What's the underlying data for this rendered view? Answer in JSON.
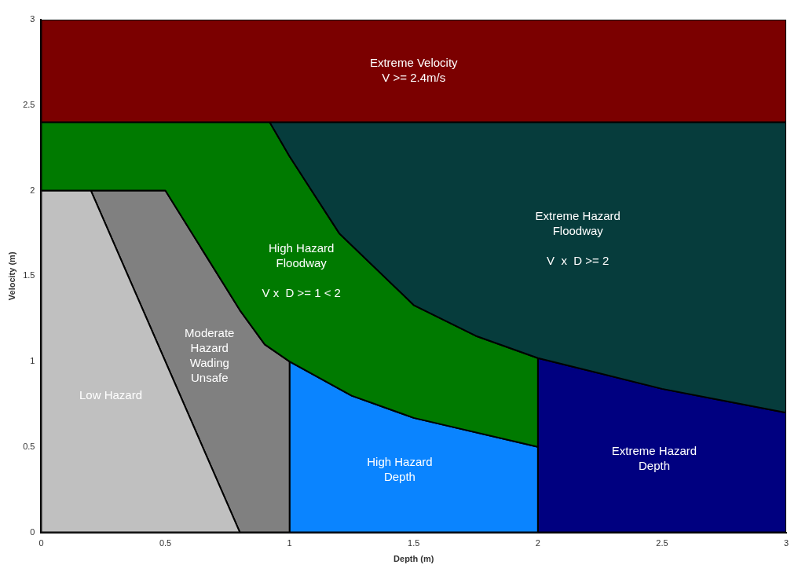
{
  "chart_data": {
    "type": "area",
    "xlabel": "Depth (m)",
    "ylabel": "Velocity (m)",
    "xlim": [
      0,
      3
    ],
    "ylim": [
      0,
      3
    ],
    "xticks": [
      0,
      0.5,
      1,
      1.5,
      2,
      2.5,
      3
    ],
    "yticks": [
      0,
      0.5,
      1,
      1.5,
      2,
      2.5,
      3
    ],
    "grid": false,
    "legend": false,
    "marker": "none",
    "line_style": "solid",
    "series": [
      {
        "name": "Extreme Velocity\nV >= 2.4m/s",
        "color": "#7b0000",
        "x": [
          0,
          3,
          3,
          0,
          0
        ],
        "values": [
          2.4,
          2.4,
          3,
          3,
          2.4
        ]
      },
      {
        "name": "Extreme Hazard\nFloodway\n\nV  x  D >= 2",
        "color": "#063c3c",
        "x": [
          0.92,
          1,
          1.2,
          1.5,
          1.75,
          2,
          2.5,
          3,
          3,
          0.92
        ],
        "values": [
          2.4,
          2.2,
          1.75,
          1.33,
          1.15,
          1.02,
          0.84,
          0.7,
          2.4,
          2.4
        ]
      },
      {
        "name": "High Hazard\nFloodway\n\nV x  D >= 1 < 2",
        "color": "#007a00",
        "x": [
          0,
          0.5,
          0.8,
          0.9,
          1,
          1.25,
          1.5,
          2,
          2,
          1.75,
          1.5,
          1.2,
          1,
          0.92,
          0,
          0
        ],
        "values": [
          2,
          2,
          1.3,
          1.1,
          1,
          0.8,
          0.67,
          0.5,
          1.02,
          1.15,
          1.33,
          1.75,
          2.2,
          2.4,
          2.4,
          2
        ]
      },
      {
        "name": "Low Hazard",
        "color": "#c0c0c0",
        "x": [
          0,
          0.8,
          0.2,
          0,
          0
        ],
        "values": [
          0,
          0,
          2,
          2,
          0
        ]
      },
      {
        "name": "Moderate\nHazard\nWading\nUnsafe",
        "color": "#808080",
        "x": [
          0.2,
          0.5,
          0.8,
          0.9,
          1,
          1,
          0.8,
          0.2
        ],
        "values": [
          2,
          2,
          1.3,
          1.1,
          1,
          0,
          0,
          2
        ]
      },
      {
        "name": "High Hazard\nDepth",
        "color": "#0a84ff",
        "x": [
          1,
          1,
          1.25,
          1.5,
          2,
          2,
          1
        ],
        "values": [
          0,
          1,
          0.8,
          0.67,
          0.5,
          0,
          0
        ]
      },
      {
        "name": "Extreme Hazard\nDepth",
        "color": "#000080",
        "x": [
          2,
          2,
          2.5,
          3,
          3,
          2
        ],
        "values": [
          0,
          1.02,
          0.84,
          0.7,
          0,
          0
        ]
      }
    ]
  }
}
